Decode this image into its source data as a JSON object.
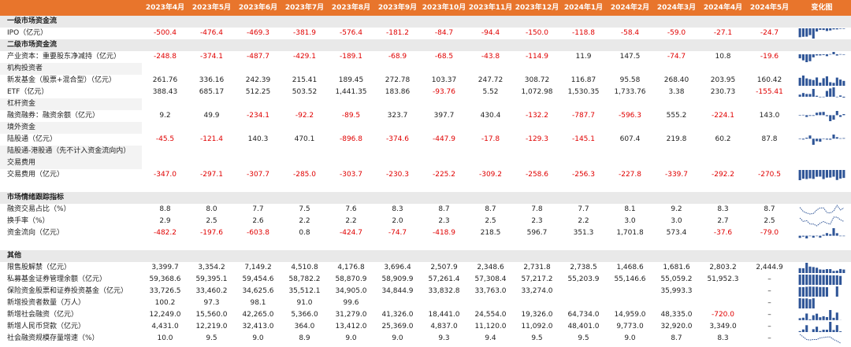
{
  "header": {
    "blank": "",
    "months": [
      "2023年4月",
      "2023年5月",
      "2023年6月",
      "2023年7月",
      "2023年8月",
      "2023年9月",
      "2023年10月",
      "2023年11月",
      "2023年12月",
      "2024年1月",
      "2024年2月",
      "2024年3月",
      "2024年4月",
      "2024年5月"
    ],
    "trend": "变化图"
  },
  "colors": {
    "header": "#e8752c",
    "negative": "#e00000",
    "bar": "#2f5597",
    "line": "#2f5597"
  },
  "rows": [
    {
      "type": "sec",
      "label": "一级市场资金流"
    },
    {
      "type": "data",
      "label": "IPO（亿元）",
      "values": [
        "-500.4",
        "-476.4",
        "-469.3",
        "-381.9",
        "-576.4",
        "-181.2",
        "-84.7",
        "-94.4",
        "-150.0",
        "-118.8",
        "-58.4",
        "-59.0",
        "-27.1",
        "-24.7"
      ],
      "spark": "bar"
    },
    {
      "type": "sec",
      "label": "二级市场资金流"
    },
    {
      "type": "data",
      "label": "产业资本：重要股东净减持（亿元）",
      "values": [
        "-248.8",
        "-374.1",
        "-487.7",
        "-429.1",
        "-189.1",
        "-68.9",
        "-68.5",
        "-43.8",
        "-114.9",
        "11.9",
        "147.5",
        "-74.7",
        "10.8",
        "-19.6"
      ],
      "spark": "bar"
    },
    {
      "type": "grp",
      "label": "机构投资者"
    },
    {
      "type": "data",
      "label": "新发基金（股票+混合型）（亿元）",
      "values": [
        "261.76",
        "336.16",
        "242.39",
        "215.41",
        "189.45",
        "272.78",
        "103.37",
        "247.72",
        "308.72",
        "116.87",
        "95.58",
        "268.40",
        "203.95",
        "160.42"
      ],
      "spark": "bar"
    },
    {
      "type": "data",
      "label": "ETF（亿元）",
      "values": [
        "388.43",
        "685.17",
        "512.25",
        "503.52",
        "1,441.35",
        "183.86",
        "-93.76",
        "5.52",
        "1,072.98",
        "1,530.35",
        "1,733.76",
        "3.38",
        "230.73",
        "-155.41"
      ],
      "spark": "bar"
    },
    {
      "type": "grp",
      "label": "杠杆资金"
    },
    {
      "type": "data",
      "label": "融资融券：融资余额（亿元）",
      "values": [
        "9.2",
        "49.9",
        "-234.1",
        "-92.2",
        "-89.5",
        "323.7",
        "397.7",
        "430.4",
        "-132.2",
        "-787.7",
        "-596.3",
        "555.2",
        "-224.1",
        "143.0"
      ],
      "spark": "bar"
    },
    {
      "type": "grp",
      "label": "境外资金"
    },
    {
      "type": "data",
      "label": "陆股通（亿元）",
      "values": [
        "-45.5",
        "-121.4",
        "140.3",
        "470.1",
        "-896.8",
        "-374.6",
        "-447.9",
        "-17.8",
        "-129.3",
        "-145.1",
        "607.4",
        "219.8",
        "60.2",
        "87.8"
      ],
      "spark": "bar"
    },
    {
      "type": "grp",
      "label": "陆股通-港股通（先不计入资金流向内）"
    },
    {
      "type": "grp",
      "label": "交易费用"
    },
    {
      "type": "data",
      "label": "交易费用（亿元）",
      "values": [
        "-347.0",
        "-297.1",
        "-307.7",
        "-285.0",
        "-303.7",
        "-230.3",
        "-225.2",
        "-309.2",
        "-258.6",
        "-256.3",
        "-227.8",
        "-339.7",
        "-292.2",
        "-270.5"
      ],
      "spark": "bar"
    },
    {
      "type": "gap"
    },
    {
      "type": "sec",
      "label": "市场情绪跟踪指标"
    },
    {
      "type": "data",
      "label": "融资交易占比（%）",
      "values": [
        "8.8",
        "8.0",
        "7.7",
        "7.5",
        "7.6",
        "8.3",
        "8.7",
        "8.7",
        "7.8",
        "7.7",
        "8.1",
        "9.2",
        "8.3",
        "8.7"
      ],
      "spark": "line"
    },
    {
      "type": "data",
      "label": "换手率（%）",
      "values": [
        "2.9",
        "2.5",
        "2.6",
        "2.2",
        "2.2",
        "2.0",
        "2.3",
        "2.5",
        "2.3",
        "2.2",
        "3.0",
        "3.0",
        "2.7",
        "2.5"
      ],
      "spark": "line"
    },
    {
      "type": "data",
      "label": "资金流向（亿元）",
      "values": [
        "-482.2",
        "-197.6",
        "-603.8",
        "0.8",
        "-424.7",
        "-74.7",
        "-418.9",
        "218.5",
        "596.7",
        "351.3",
        "1,701.8",
        "573.4",
        "-37.6",
        "-79.0"
      ],
      "spark": "bar"
    },
    {
      "type": "gap"
    },
    {
      "type": "sec",
      "label": "其他"
    },
    {
      "type": "data",
      "label": "限售股解禁（亿元）",
      "values": [
        "3,399.7",
        "3,354.2",
        "7,149.2",
        "4,510.8",
        "4,176.8",
        "3,696.4",
        "2,507.9",
        "2,348.6",
        "2,731.8",
        "2,738.5",
        "1,468.6",
        "1,681.6",
        "2,803.2",
        "2,444.9"
      ],
      "spark": "bar"
    },
    {
      "type": "data",
      "label": "私募基金证券管理余额（亿元）",
      "values": [
        "59,368.6",
        "59,395.1",
        "59,454.6",
        "58,782.2",
        "58,870.9",
        "58,909.9",
        "57,261.4",
        "57,308.4",
        "57,217.2",
        "55,203.9",
        "55,146.6",
        "55,059.2",
        "51,952.3",
        "–"
      ],
      "spark": "bar"
    },
    {
      "type": "data",
      "label": "保险资金股票和证券投资基金（亿元）",
      "values": [
        "33,726.5",
        "33,460.2",
        "34,625.6",
        "35,512.1",
        "34,905.0",
        "34,844.9",
        "33,832.8",
        "33,763.0",
        "33,274.0",
        "",
        "",
        "35,993.3",
        "",
        "–"
      ],
      "spark": "bar"
    },
    {
      "type": "data",
      "label": "新增投资者数量（万人）",
      "values": [
        "100.2",
        "97.3",
        "98.1",
        "91.0",
        "99.6",
        "",
        "",
        "",
        "",
        "",
        "",
        "",
        "",
        "–"
      ],
      "spark": "bar"
    },
    {
      "type": "data",
      "label": "新增社会融资（亿元）",
      "values": [
        "12,249.0",
        "15,560.0",
        "42,265.0",
        "5,366.0",
        "31,279.0",
        "41,326.0",
        "18,441.0",
        "24,554.0",
        "19,326.0",
        "64,734.0",
        "14,959.0",
        "48,335.0",
        "-720.0",
        "–"
      ],
      "spark": "bar"
    },
    {
      "type": "data",
      "label": "新增人民币贷款（亿元）",
      "values": [
        "4,431.0",
        "12,219.0",
        "32,413.0",
        "364.0",
        "13,412.0",
        "25,369.0",
        "4,837.0",
        "11,120.0",
        "11,092.0",
        "48,401.0",
        "9,773.0",
        "32,920.0",
        "3,349.0",
        "–"
      ],
      "spark": "bar"
    },
    {
      "type": "data",
      "label": "社会融资规模存量增速（%）",
      "values": [
        "10.0",
        "9.5",
        "9.0",
        "8.9",
        "9.0",
        "9.0",
        "9.3",
        "9.4",
        "9.5",
        "9.5",
        "9.0",
        "8.7",
        "8.3",
        "–"
      ],
      "spark": "line"
    }
  ]
}
